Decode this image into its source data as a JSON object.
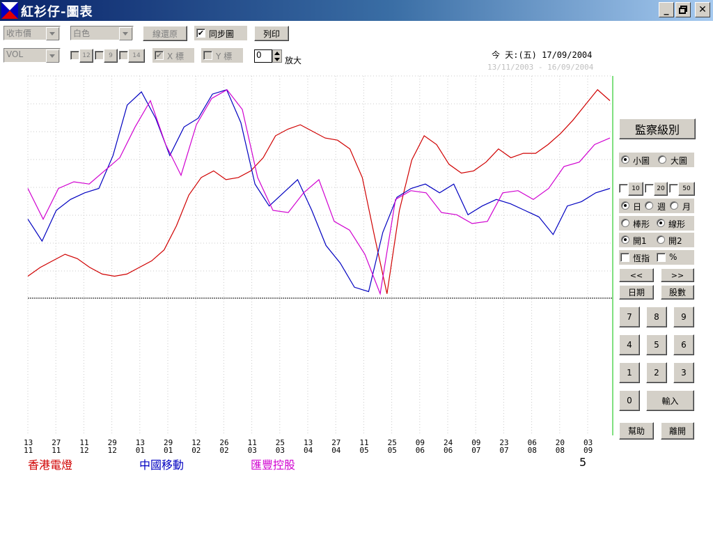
{
  "window": {
    "title": "紅衫仔-圖表",
    "min": "_",
    "max": "□",
    "close": "✕"
  },
  "toolbar": {
    "price_combo": "收市價",
    "color_combo": "白色",
    "reset_line": "線還原",
    "sync_label": "同步圖",
    "sync_checked": "✔",
    "print": "列印",
    "vol_combo": "VOL",
    "ma1": "12",
    "ma2": "9",
    "ma3": "14",
    "x_axis": "X 標",
    "x_checked": "✔",
    "y_axis": "Y 標",
    "zoom_value": "0",
    "zoom_label": "放大"
  },
  "dates": {
    "today": "今 天:(五) 17/09/2004",
    "range": "13/11/2003 - 16/09/2004"
  },
  "side": {
    "level_btn": "監察級別",
    "small_chart": "小圖",
    "big_chart": "大圖",
    "p10": "10",
    "p20": "20",
    "p50": "50",
    "day": "日",
    "week": "週",
    "month": "月",
    "bar": "棒形",
    "line": "線形",
    "open1": "開1",
    "open2": "開2",
    "hsi": "恆指",
    "pct": "%",
    "prev": "<<",
    "next": ">>",
    "date_btn": "日期",
    "stock_btn": "股數",
    "keys": [
      "7",
      "8",
      "9",
      "4",
      "5",
      "6",
      "1",
      "2",
      "3",
      "0"
    ],
    "enter": "輸入",
    "help": "幫助",
    "exit": "離開"
  },
  "legend": {
    "s1": "香港電燈",
    "s2": "中國移動",
    "s3": "匯豐控股",
    "page": "5"
  },
  "colors": {
    "s1": "#d00000",
    "s2": "#0000c0",
    "s3": "#d000d0",
    "titlebar": "#0a246a"
  },
  "chart_data": {
    "type": "line",
    "x_ticks": [
      [
        "13",
        "11"
      ],
      [
        "27",
        "11"
      ],
      [
        "11",
        "12"
      ],
      [
        "29",
        "12"
      ],
      [
        "13",
        "01"
      ],
      [
        "29",
        "01"
      ],
      [
        "12",
        "02"
      ],
      [
        "26",
        "02"
      ],
      [
        "11",
        "03"
      ],
      [
        "25",
        "03"
      ],
      [
        "13",
        "04"
      ],
      [
        "27",
        "04"
      ],
      [
        "11",
        "05"
      ],
      [
        "25",
        "05"
      ],
      [
        "09",
        "06"
      ],
      [
        "24",
        "06"
      ],
      [
        "09",
        "07"
      ],
      [
        "23",
        "07"
      ],
      [
        "06",
        "08"
      ],
      [
        "20",
        "08"
      ],
      [
        "03",
        "09"
      ]
    ],
    "series": [
      {
        "name": "香港電燈",
        "values": [
          0.1,
          0.14,
          0.17,
          0.2,
          0.18,
          0.14,
          0.11,
          0.1,
          0.11,
          0.14,
          0.17,
          0.22,
          0.33,
          0.47,
          0.55,
          0.58,
          0.54,
          0.55,
          0.58,
          0.64,
          0.74,
          0.77,
          0.79,
          0.76,
          0.73,
          0.72,
          0.68,
          0.55,
          0.28,
          0.02,
          0.4,
          0.63,
          0.74,
          0.7,
          0.61,
          0.57,
          0.58,
          0.62,
          0.68,
          0.64,
          0.66,
          0.66,
          0.7,
          0.75,
          0.81,
          0.88,
          0.95,
          0.9
        ]
      },
      {
        "name": "中國移動",
        "values": [
          0.36,
          0.26,
          0.4,
          0.45,
          0.48,
          0.5,
          0.65,
          0.88,
          0.94,
          0.82,
          0.65,
          0.78,
          0.82,
          0.93,
          0.95,
          0.8,
          0.52,
          0.42,
          0.48,
          0.54,
          0.4,
          0.24,
          0.16,
          0.05,
          0.03,
          0.3,
          0.46,
          0.5,
          0.52,
          0.48,
          0.52,
          0.38,
          0.42,
          0.45,
          0.43,
          0.4,
          0.37,
          0.29,
          0.42,
          0.44,
          0.48,
          0.5
        ]
      },
      {
        "name": "匯豐控股",
        "values": [
          0.5,
          0.36,
          0.5,
          0.53,
          0.52,
          0.58,
          0.64,
          0.78,
          0.9,
          0.7,
          0.56,
          0.79,
          0.91,
          0.95,
          0.86,
          0.55,
          0.4,
          0.39,
          0.48,
          0.54,
          0.35,
          0.31,
          0.2,
          0.02,
          0.45,
          0.49,
          0.48,
          0.39,
          0.38,
          0.34,
          0.35,
          0.48,
          0.49,
          0.45,
          0.5,
          0.6,
          0.62,
          0.7,
          0.73
        ]
      }
    ],
    "grid": true
  }
}
